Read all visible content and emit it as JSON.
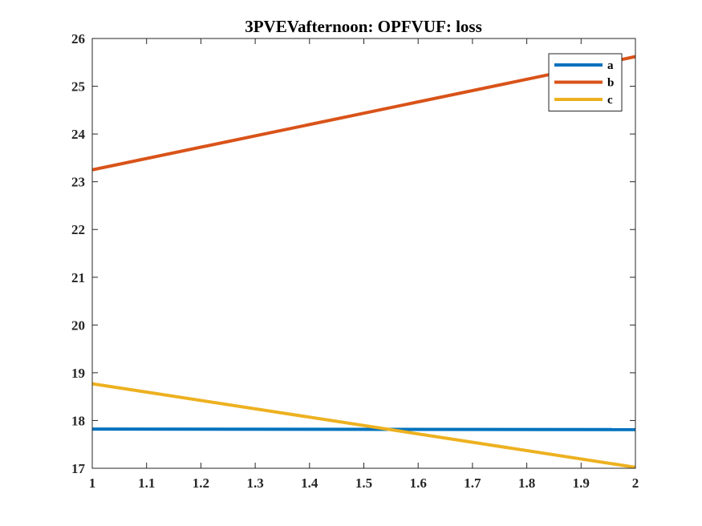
{
  "chart_data": {
    "type": "line",
    "title": "3PVEVafternoon: OPFVUF: loss",
    "xlabel": "",
    "ylabel": "",
    "xlim": [
      1,
      2
    ],
    "ylim": [
      17,
      26
    ],
    "x": [
      1,
      2
    ],
    "xticks": [
      1,
      1.1,
      1.2,
      1.3,
      1.4,
      1.5,
      1.6,
      1.7,
      1.8,
      1.9,
      2
    ],
    "xtick_labels": [
      "1",
      "1.1",
      "1.2",
      "1.3",
      "1.4",
      "1.5",
      "1.6",
      "1.7",
      "1.8",
      "1.9",
      "2"
    ],
    "yticks": [
      17,
      18,
      19,
      20,
      21,
      22,
      23,
      24,
      25,
      26
    ],
    "ytick_labels": [
      "17",
      "18",
      "19",
      "20",
      "21",
      "22",
      "23",
      "24",
      "25",
      "26"
    ],
    "grid": false,
    "legend_position": "top-right",
    "series": [
      {
        "name": "a",
        "color": "#0072BD",
        "values": [
          17.82,
          17.81
        ]
      },
      {
        "name": "b",
        "color": "#D95319",
        "values": [
          23.25,
          25.62
        ]
      },
      {
        "name": "c",
        "color": "#EDB120",
        "values": [
          18.77,
          17.02
        ]
      }
    ]
  }
}
